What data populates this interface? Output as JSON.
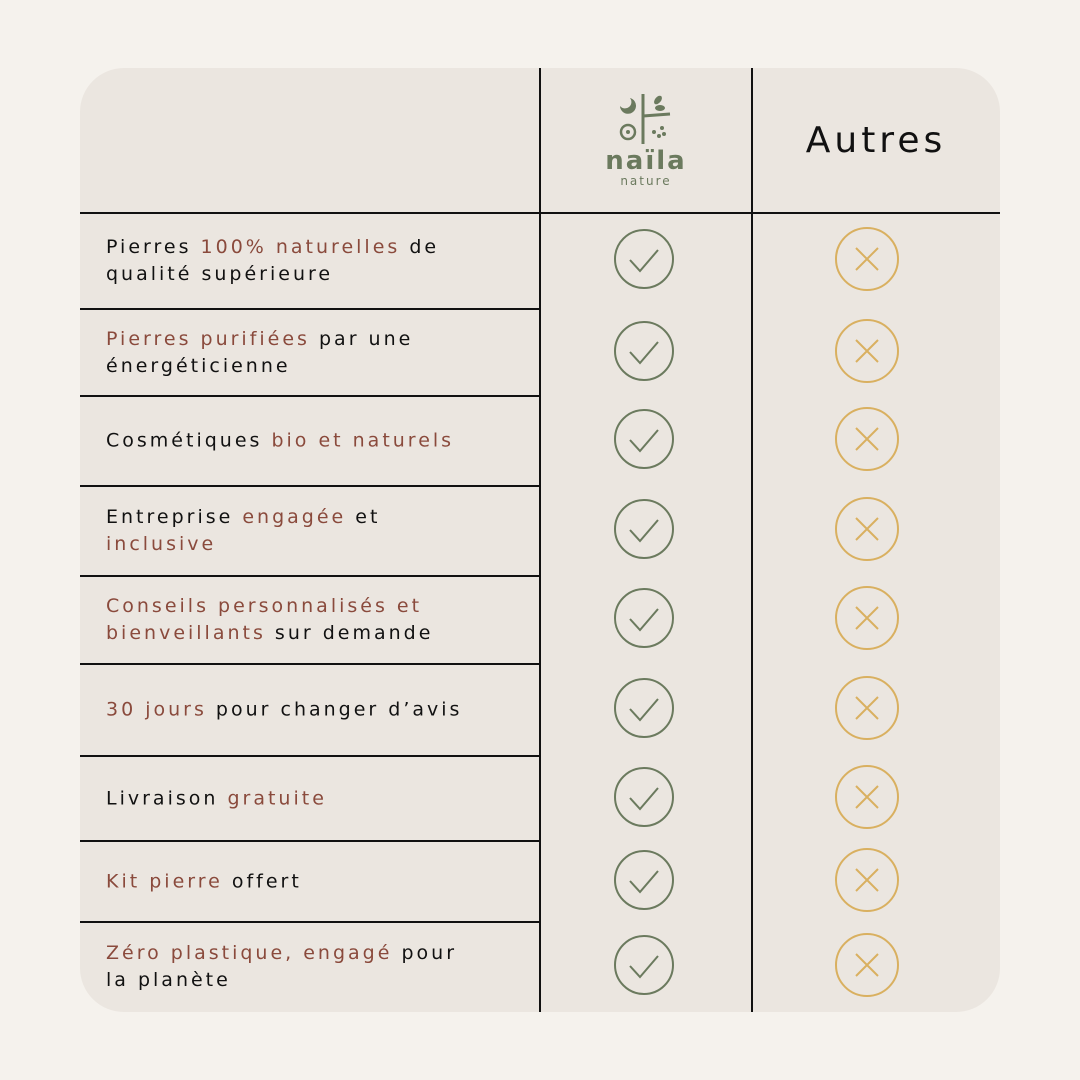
{
  "header": {
    "brand_name": "naïla",
    "brand_tagline": "nature",
    "other_label": "Autres"
  },
  "colors": {
    "background": "#f5f2ed",
    "card": "#ebe6e0",
    "highlight": "#8a4a3c",
    "check": "#6b7a5e",
    "cross": "#d9b060"
  },
  "icons": {
    "brand": "check-circle-icon",
    "other": "x-circle-icon"
  },
  "rows": [
    {
      "segments": [
        {
          "t": "Pierres ",
          "h": false
        },
        {
          "t": "100% naturelles",
          "h": true
        },
        {
          "t": " de qualité supérieure",
          "h": false
        }
      ]
    },
    {
      "segments": [
        {
          "t": "Pierres purifiées",
          "h": true
        },
        {
          "t": " par une énergéticienne",
          "h": false
        }
      ]
    },
    {
      "segments": [
        {
          "t": "Cosmétiques ",
          "h": false
        },
        {
          "t": "bio et naturels",
          "h": true
        }
      ]
    },
    {
      "segments": [
        {
          "t": "Entreprise ",
          "h": false
        },
        {
          "t": "engagée",
          "h": true
        },
        {
          "t": " et ",
          "h": false
        },
        {
          "t": "inclusive",
          "h": true
        }
      ]
    },
    {
      "segments": [
        {
          "t": "Conseils personnalisés et bienveillants",
          "h": true
        },
        {
          "t": " sur demande",
          "h": false
        }
      ]
    },
    {
      "segments": [
        {
          "t": "30 jours",
          "h": true
        },
        {
          "t": " pour changer d’avis",
          "h": false
        }
      ]
    },
    {
      "segments": [
        {
          "t": "Livraison ",
          "h": false
        },
        {
          "t": "gratuite",
          "h": true
        }
      ]
    },
    {
      "segments": [
        {
          "t": "Kit pierre",
          "h": true
        },
        {
          "t": " offert",
          "h": false
        }
      ]
    },
    {
      "segments": [
        {
          "t": "Zéro plastique, engagé",
          "h": true
        },
        {
          "t": " pour la planète",
          "h": false
        }
      ]
    }
  ]
}
